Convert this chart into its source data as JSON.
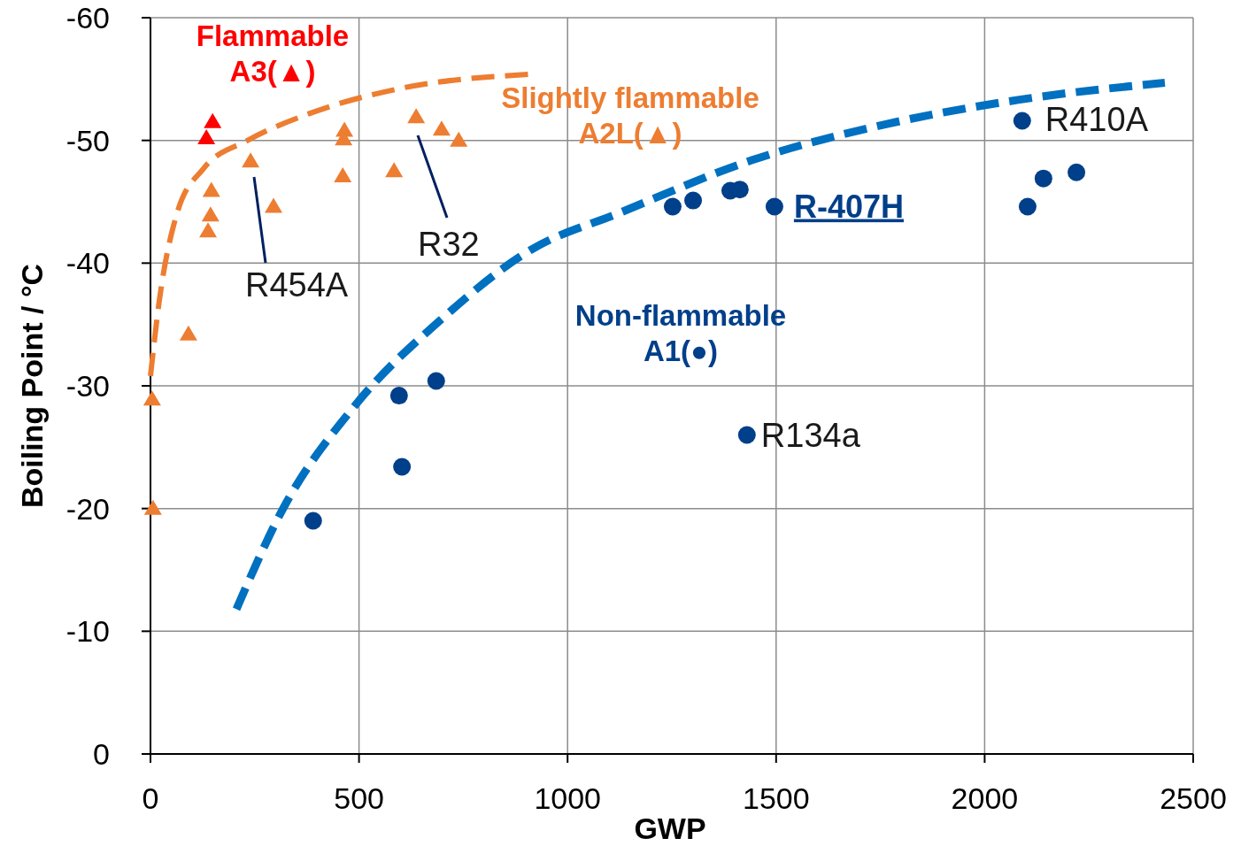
{
  "chart_data": {
    "type": "scatter",
    "xlabel": "GWP",
    "ylabel": "Boiling Point / °C",
    "xlim": [
      0,
      2500
    ],
    "xticks": [
      0,
      500,
      1000,
      1500,
      2000,
      2500
    ],
    "ylim": [
      0,
      -60
    ],
    "yticks": [
      0,
      -10,
      -20,
      -30,
      -40,
      -50,
      -60
    ],
    "grid": true,
    "series": [
      {
        "type": "line",
        "color": "#ed7d31",
        "line_style": "dashed",
        "marker": "none",
        "x": [
          0,
          21,
          64,
          127,
          233,
          382,
          594,
          913
        ],
        "values": [
          -30.8,
          -36.9,
          -44.1,
          -47.7,
          -50.0,
          -52.2,
          -54.2,
          -55.4
        ]
      },
      {
        "type": "line",
        "color": "#0070c0",
        "line_style": "dashed",
        "marker": "none",
        "x": [
          206,
          318,
          488,
          700,
          913,
          1125,
          1443,
          1761,
          2080,
          2432
        ],
        "values": [
          -11.8,
          -20.0,
          -28.3,
          -35.5,
          -41.1,
          -44.1,
          -48.4,
          -51.3,
          -53.3,
          -54.7
        ]
      },
      {
        "type": "scatter",
        "name": "Flammable A3(▲)",
        "color": "#ff0000",
        "marker": "triangle",
        "x": [
          149,
          134
        ],
        "values": [
          -51.5,
          -50.2
        ]
      },
      {
        "type": "scatter",
        "name": "Slightly flammable A2L(▲)",
        "color": "#ed7d31",
        "marker": "triangle",
        "x": [
          4,
          6,
          91,
          146,
          144,
          138,
          240,
          295,
          465,
          463,
          461,
          584,
          637,
          698,
          739
        ],
        "values": [
          -28.9,
          -20.0,
          -34.2,
          -45.9,
          -43.9,
          -42.6,
          -48.3,
          -44.6,
          -50.8,
          -50.1,
          -47.1,
          -47.5,
          -51.9,
          -50.9,
          -50.0
        ]
      },
      {
        "type": "scatter",
        "name": "Non-flammable A1(●)",
        "color": "#003f8a",
        "marker": "circle",
        "x": [
          390,
          596,
          603,
          685,
          1252,
          1301,
          1390,
          1413,
          1496,
          2090,
          2103,
          2141,
          2220,
          1430
        ],
        "values": [
          -19.0,
          -29.2,
          -23.4,
          -30.4,
          -44.6,
          -45.1,
          -45.9,
          -46.0,
          -44.6,
          -51.6,
          -44.6,
          -46.9,
          -47.4,
          -26.0
        ]
      }
    ],
    "annotations": [
      {
        "text": "R410A",
        "x": 2090,
        "y": -51.6
      },
      {
        "text": "R-407H",
        "x": 1496,
        "y": -44.6
      },
      {
        "text": "R134a",
        "x": 1430,
        "y": -26.0
      },
      "R454A",
      "R32"
    ]
  }
}
